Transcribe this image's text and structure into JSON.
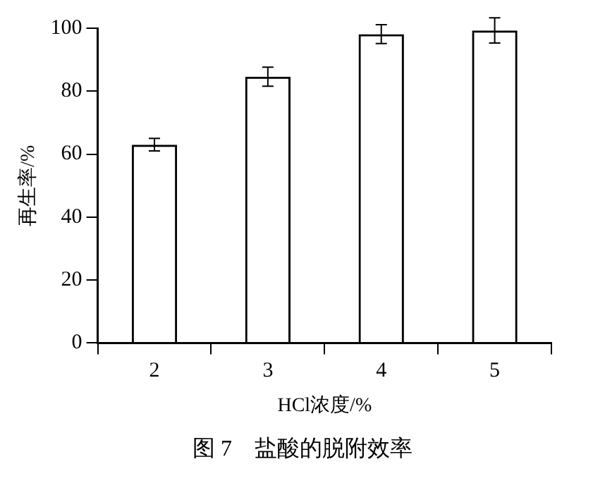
{
  "chart_data": {
    "type": "bar",
    "xlabel": "HCl浓度/%",
    "ylabel": "再生率/%",
    "categories": [
      "2",
      "3",
      "4",
      "5"
    ],
    "values": [
      63,
      84.6,
      98.1,
      99.3
    ],
    "errors": [
      2,
      3,
      3,
      4
    ],
    "color": "#000000",
    "ylim": [
      0,
      100
    ],
    "yticks": [
      0,
      20,
      40,
      60,
      80,
      100
    ],
    "grid": false,
    "legend": false,
    "annotations": [
      "图 7　盐酸的脱附效率"
    ]
  }
}
